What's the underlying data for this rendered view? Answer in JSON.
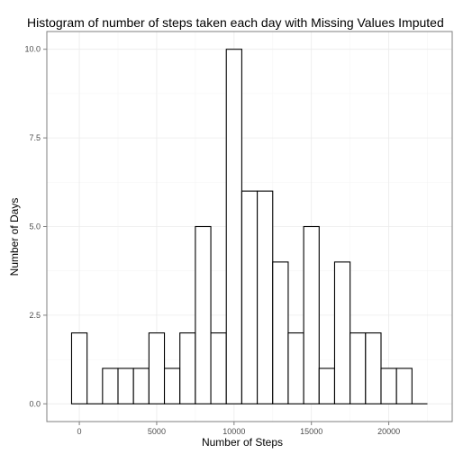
{
  "chart_data": {
    "type": "bar",
    "title": "Histogram of number of steps taken each day with Missing Values Imputed",
    "xlabel": "Number of Steps",
    "ylabel": "Number of Days",
    "binwidth": 1000,
    "bin_centers": [
      0,
      1000,
      2000,
      3000,
      4000,
      5000,
      6000,
      7000,
      8000,
      9000,
      10000,
      11000,
      12000,
      13000,
      14000,
      15000,
      16000,
      17000,
      18000,
      19000,
      20000,
      21000,
      22000
    ],
    "values": [
      2,
      0,
      1,
      1,
      1,
      2,
      1,
      2,
      5,
      2,
      10,
      6,
      6,
      4,
      2,
      5,
      1,
      4,
      2,
      2,
      1,
      1,
      0
    ],
    "xlim": [
      -2100,
      24100
    ],
    "ylim": [
      -0.5,
      10.5
    ],
    "x_ticks": [
      0,
      5000,
      10000,
      15000,
      20000
    ],
    "x_tick_labels": [
      "0",
      "5000",
      "10000",
      "15000",
      "20000"
    ],
    "y_ticks": [
      0,
      2.5,
      5,
      7.5,
      10
    ],
    "y_tick_labels": [
      "0.0",
      "2.5",
      "5.0",
      "7.5",
      "10.0"
    ],
    "grid": true,
    "colors": {
      "bar_fill": "#ffffff",
      "bar_stroke": "#000000",
      "grid": "#ebebeb",
      "panel_border": "#7f7f7f"
    }
  }
}
